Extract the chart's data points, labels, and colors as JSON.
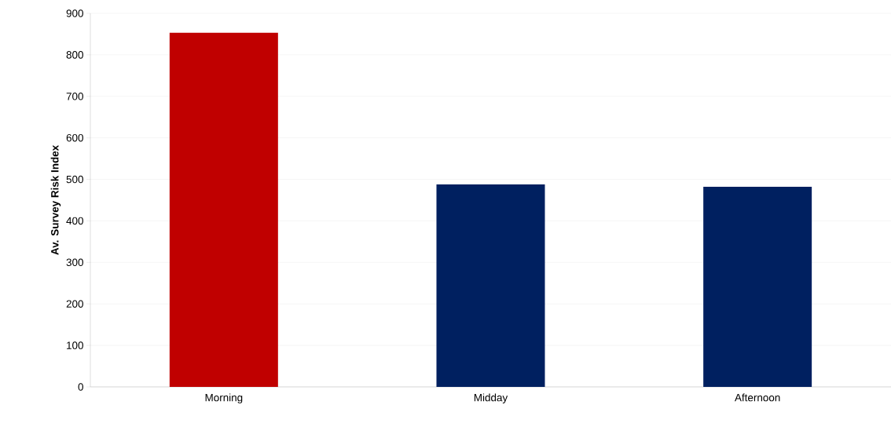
{
  "chart_data": {
    "type": "bar",
    "ylabel": "Av. Survey Risk Index",
    "categories": [
      "Morning",
      "Midday",
      "Afternoon"
    ],
    "values": [
      853,
      488,
      482
    ],
    "colors": [
      "#c00000",
      "#002060",
      "#002060"
    ],
    "ylim": [
      0,
      900
    ],
    "yticks": [
      0,
      100,
      200,
      300,
      400,
      500,
      600,
      700,
      800,
      900
    ],
    "grid": "y"
  }
}
